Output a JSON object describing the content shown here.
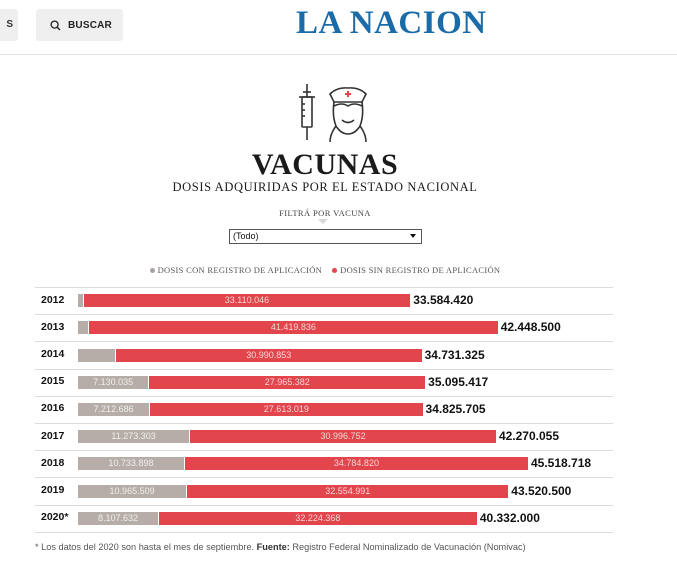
{
  "header": {
    "cut_button_label": "S",
    "search_label": "BUSCAR",
    "logo_text": "LA NACION"
  },
  "graphic": {
    "title": "VACUNAS",
    "subtitle": "DOSIS ADQUIRIDAS POR EL ESTADO NACIONAL",
    "filter_label": "FILTRÁ POR VACUNA",
    "filter_value": "(Todo)",
    "legend": [
      {
        "label": "DOSIS CON REGISTRO DE APLICACIÓN",
        "color": "#a9a29e"
      },
      {
        "label": "DOSIS SIN REGISTRO DE APLICACIÓN",
        "color": "#e3454c"
      }
    ],
    "footnote_prefix": "* Los datos del 2020 son hasta el mes de septiembre. ",
    "footnote_bold": "Fuente:",
    "footnote_rest": " Registro Federal Nominalizado de Vacunación (Nomivac)"
  },
  "chart_data": {
    "type": "bar",
    "orientation": "horizontal",
    "stacked": true,
    "categories": [
      "2012",
      "2013",
      "2014",
      "2015",
      "2016",
      "2017",
      "2018",
      "2019",
      "2020*"
    ],
    "series": [
      {
        "name": "DOSIS CON REGISTRO DE APLICACIÓN",
        "color": "#b6ada8",
        "values": [
          474374,
          1028664,
          3740472,
          7130035,
          7212686,
          11273303,
          10733898,
          10965509,
          8107632
        ],
        "labels": [
          "",
          "",
          "",
          "7.130.035",
          "7.212.686",
          "11.273.303",
          "10.733.898",
          "10.965.509",
          "8.107.632"
        ]
      },
      {
        "name": "DOSIS SIN REGISTRO DE APLICACIÓN",
        "color": "#e3454c",
        "values": [
          33110046,
          41419836,
          30990853,
          27965382,
          27613019,
          30996752,
          34784820,
          32554991,
          32224368
        ],
        "labels": [
          "33.110.046",
          "41.419.836",
          "30.990.853",
          "27.965.382",
          "27.613.019",
          "30.996.752",
          "34.784.820",
          "32.554.991",
          "32.224.368"
        ]
      }
    ],
    "totals": [
      "33.584.420",
      "42.448.500",
      "34.731.325",
      "35.095.417",
      "34.825.705",
      "42.270.055",
      "45.518.718",
      "43.520.500",
      "40.332.000"
    ],
    "total_values": [
      33584420,
      42448500,
      34731325,
      35095417,
      34825705,
      42270055,
      45518718,
      43520500,
      40332000
    ]
  }
}
